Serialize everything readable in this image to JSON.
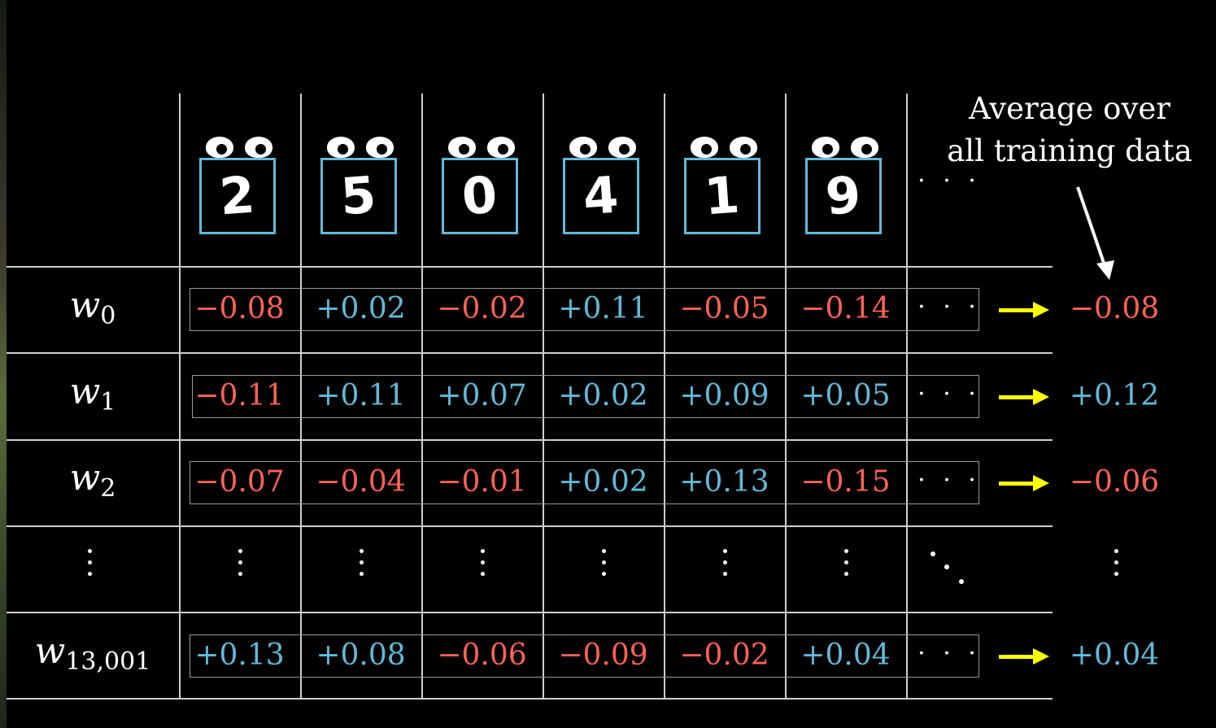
{
  "caption": {
    "line1": "Average over",
    "line2": "all training data"
  },
  "digits": [
    "2",
    "5",
    "0",
    "4",
    "1",
    "9"
  ],
  "ellipsis_h": "· · ·",
  "weights": [
    {
      "name": "w",
      "sub": "0"
    },
    {
      "name": "w",
      "sub": "1"
    },
    {
      "name": "w",
      "sub": "2"
    },
    {
      "name": "w",
      "sub": "13,001"
    }
  ],
  "rows": [
    {
      "values": [
        "−0.08",
        "+0.02",
        "−0.02",
        "+0.11",
        "−0.05",
        "−0.14"
      ],
      "average": "−0.08"
    },
    {
      "values": [
        "−0.11",
        "+0.11",
        "+0.07",
        "+0.02",
        "+0.09",
        "+0.05"
      ],
      "average": "+0.12"
    },
    {
      "values": [
        "−0.07",
        "−0.04",
        "−0.01",
        "+0.02",
        "+0.13",
        "−0.15"
      ],
      "average": "−0.06"
    },
    {
      "values": [
        "+0.13",
        "+0.08",
        "−0.06",
        "−0.09",
        "−0.02",
        "+0.04"
      ],
      "average": "+0.04"
    }
  ],
  "colors": {
    "positive": "#62b9d9",
    "negative": "#fc6255",
    "arrow": "#ffff00",
    "frame": "#62b9d9"
  },
  "icons": {
    "eyes": "googly-eyes-icon",
    "arrow": "right-arrow-icon"
  }
}
